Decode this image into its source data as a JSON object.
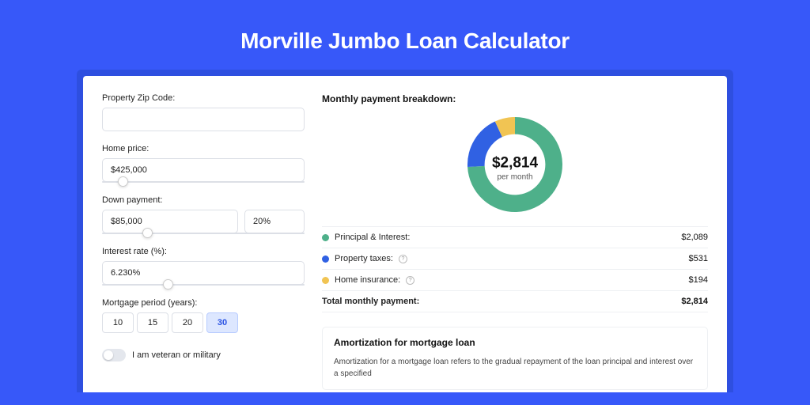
{
  "page": {
    "title": "Morville Jumbo Loan Calculator",
    "background_color": "#3758f9",
    "shadow_color": "#2e4fe0",
    "card_color": "#ffffff"
  },
  "form": {
    "zip": {
      "label": "Property Zip Code:",
      "value": ""
    },
    "home_price": {
      "label": "Home price:",
      "value": "$425,000",
      "slider_pct": 8
    },
    "down_payment": {
      "label": "Down payment:",
      "amount": "$85,000",
      "percent": "20%",
      "slider_pct": 20
    },
    "interest_rate": {
      "label": "Interest rate (%):",
      "value": "6.230%",
      "slider_pct": 30
    },
    "mortgage_period": {
      "label": "Mortgage period (years):",
      "options": [
        "10",
        "15",
        "20",
        "30"
      ],
      "selected": "30"
    },
    "veteran": {
      "label": "I am veteran or military",
      "checked": false
    }
  },
  "breakdown": {
    "title": "Monthly payment breakdown:",
    "center_amount": "$2,814",
    "center_sub": "per month",
    "donut": {
      "size": 120,
      "thickness_ratio": 0.64,
      "slices": [
        {
          "label": "Principal & Interest:",
          "value": "$2,089",
          "color": "#4eb08a",
          "fraction": 0.742,
          "has_info": false
        },
        {
          "label": "Property taxes:",
          "value": "$531",
          "color": "#3061e3",
          "fraction": 0.189,
          "has_info": true
        },
        {
          "label": "Home insurance:",
          "value": "$194",
          "color": "#f1c453",
          "fraction": 0.069,
          "has_info": true
        }
      ]
    },
    "total": {
      "label": "Total monthly payment:",
      "value": "$2,814"
    }
  },
  "amortization": {
    "title": "Amortization for mortgage loan",
    "text": "Amortization for a mortgage loan refers to the gradual repayment of the loan principal and interest over a specified"
  }
}
